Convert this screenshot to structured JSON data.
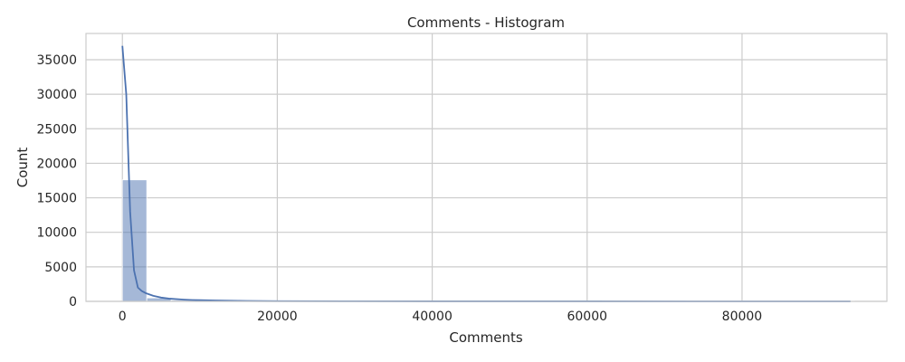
{
  "chart_data": {
    "type": "bar",
    "title": "Comments - Histogram",
    "xlabel": "Comments",
    "ylabel": "Count",
    "xlim": [
      -4700,
      98700
    ],
    "ylim": [
      0,
      38800
    ],
    "x_ticks": [
      0,
      20000,
      40000,
      60000,
      80000
    ],
    "x_tick_labels": [
      "0",
      "20000",
      "40000",
      "60000",
      "80000"
    ],
    "y_ticks": [
      0,
      5000,
      10000,
      15000,
      20000,
      25000,
      30000,
      35000
    ],
    "y_tick_labels": [
      "0",
      "5000",
      "10000",
      "15000",
      "20000",
      "25000",
      "30000",
      "35000"
    ],
    "grid": true,
    "legend": "none",
    "bar_color": "#4c72b0",
    "line_color": "#4c72b0",
    "bins": [
      {
        "x0": 0,
        "x1": 3150,
        "count": 17600
      },
      {
        "x0": 3150,
        "x1": 6300,
        "count": 500
      },
      {
        "x0": 6300,
        "x1": 9450,
        "count": 160
      },
      {
        "x0": 9450,
        "x1": 12600,
        "count": 70
      },
      {
        "x0": 12600,
        "x1": 15750,
        "count": 35
      },
      {
        "x0": 15750,
        "x1": 18900,
        "count": 18
      },
      {
        "x0": 18900,
        "x1": 22050,
        "count": 10
      },
      {
        "x0": 22050,
        "x1": 25200,
        "count": 6
      },
      {
        "x0": 25200,
        "x1": 28350,
        "count": 4
      },
      {
        "x0": 28350,
        "x1": 31500,
        "count": 3
      },
      {
        "x0": 31500,
        "x1": 34650,
        "count": 2
      },
      {
        "x0": 34650,
        "x1": 37800,
        "count": 2
      },
      {
        "x0": 37800,
        "x1": 40950,
        "count": 1
      },
      {
        "x0": 40950,
        "x1": 44100,
        "count": 1
      },
      {
        "x0": 44100,
        "x1": 47250,
        "count": 1
      },
      {
        "x0": 47250,
        "x1": 50400,
        "count": 1
      },
      {
        "x0": 50400,
        "x1": 53550,
        "count": 1
      },
      {
        "x0": 53550,
        "x1": 56700,
        "count": 1
      },
      {
        "x0": 56700,
        "x1": 59850,
        "count": 1
      },
      {
        "x0": 59850,
        "x1": 63000,
        "count": 1
      },
      {
        "x0": 63000,
        "x1": 66150,
        "count": 1
      },
      {
        "x0": 66150,
        "x1": 69300,
        "count": 1
      },
      {
        "x0": 69300,
        "x1": 72450,
        "count": 1
      },
      {
        "x0": 72450,
        "x1": 75600,
        "count": 1
      },
      {
        "x0": 75600,
        "x1": 78750,
        "count": 1
      },
      {
        "x0": 78750,
        "x1": 81900,
        "count": 1
      },
      {
        "x0": 81900,
        "x1": 85050,
        "count": 1
      },
      {
        "x0": 85050,
        "x1": 88200,
        "count": 1
      },
      {
        "x0": 88200,
        "x1": 91350,
        "count": 1
      },
      {
        "x0": 91350,
        "x1": 94500,
        "count": 1
      }
    ],
    "kde": {
      "x": [
        0,
        500,
        1000,
        1500,
        2000,
        2500,
        3000,
        4000,
        5000,
        6000,
        7000,
        8000,
        9000,
        10000,
        12000,
        14000,
        16000,
        20000,
        30000,
        40000,
        60000,
        80000,
        94000
      ],
      "y": [
        37000,
        30000,
        13000,
        4500,
        2000,
        1500,
        1200,
        800,
        550,
        400,
        320,
        250,
        200,
        170,
        120,
        90,
        60,
        30,
        15,
        10,
        6,
        4,
        2
      ]
    }
  }
}
